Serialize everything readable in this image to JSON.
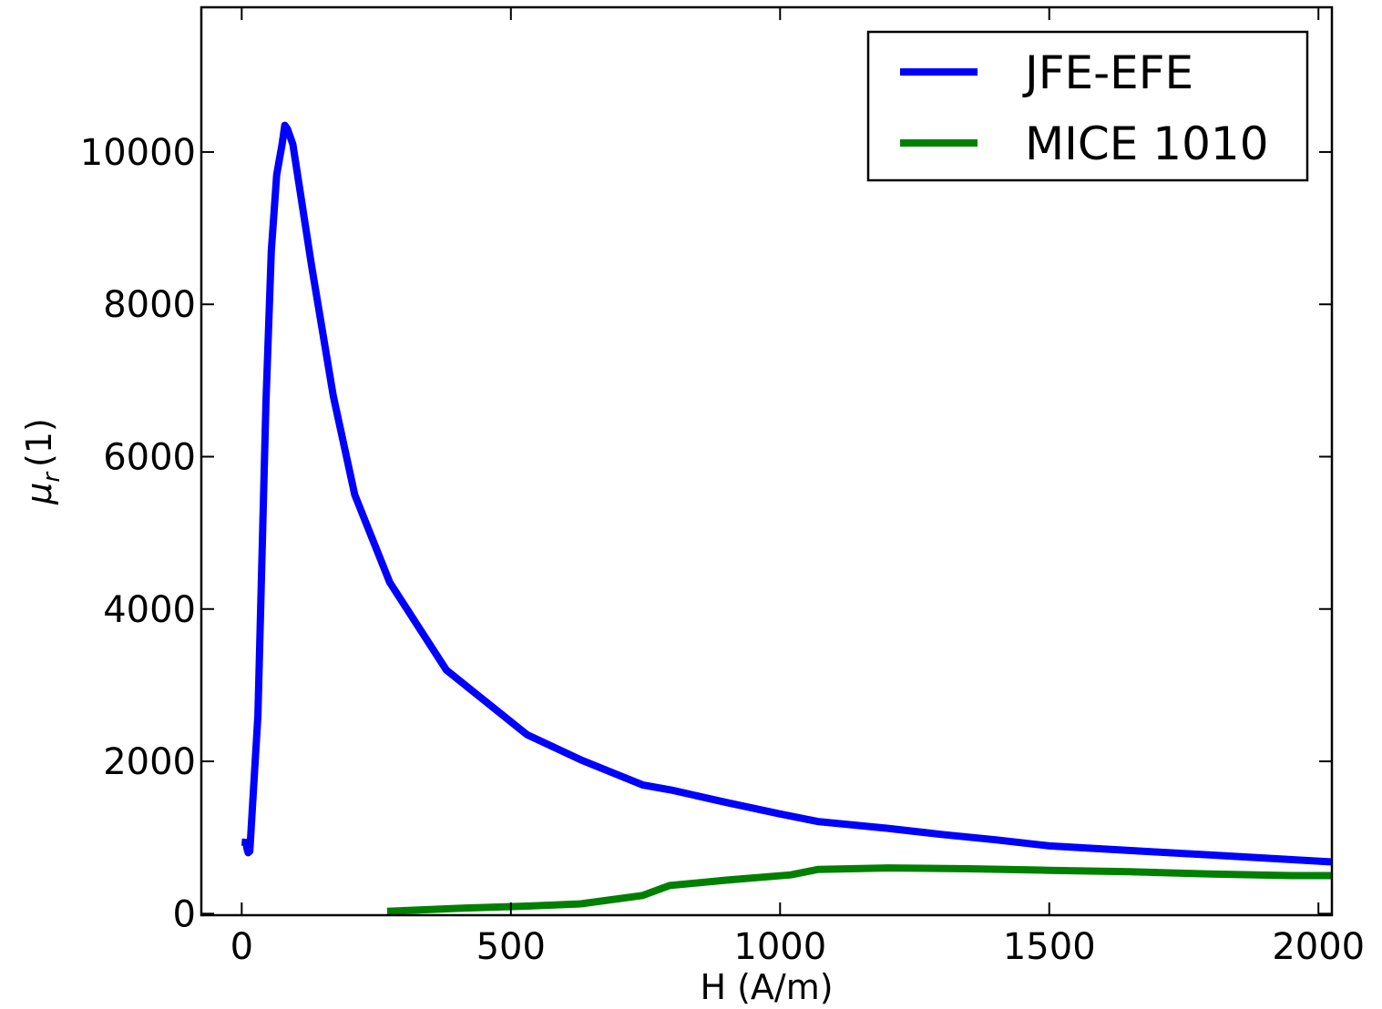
{
  "chart_data": {
    "type": "line",
    "title": "",
    "xlabel": "H (A/m)",
    "ylabel": "μ_r (1)",
    "ylabel_parts": {
      "symbol": "μ",
      "subscript": "r",
      "unit": "(1)"
    },
    "xlim": [
      -75,
      2025
    ],
    "ylim": [
      -20,
      11900
    ],
    "xticks": [
      0,
      500,
      1000,
      1500,
      2000
    ],
    "xtick_labels": [
      "0",
      "500",
      "1000",
      "1500",
      "2000"
    ],
    "yticks": [
      0,
      2000,
      4000,
      6000,
      8000,
      10000
    ],
    "ytick_labels": [
      "0",
      "2000",
      "4000",
      "6000",
      "8000",
      "10000"
    ],
    "grid": false,
    "legend_position": "top-right",
    "series": [
      {
        "name": "JFE-EFE",
        "color": "#0000ff",
        "x": [
          0,
          8,
          10,
          12,
          15,
          30,
          45,
          55,
          65,
          75,
          80,
          85,
          95,
          130,
          170,
          210,
          275,
          380,
          530,
          630,
          745,
          800,
          900,
          1000,
          1070,
          1200,
          1300,
          1400,
          1500,
          1600,
          1700,
          1800,
          1900,
          2025
        ],
        "y": [
          940,
          935,
          850,
          800,
          820,
          2600,
          6700,
          8700,
          9700,
          10100,
          10350,
          10300,
          10100,
          8500,
          6800,
          5500,
          4350,
          3200,
          2350,
          2020,
          1690,
          1620,
          1460,
          1310,
          1210,
          1120,
          1040,
          970,
          890,
          850,
          810,
          770,
          730,
          680
        ]
      },
      {
        "name": "MICE 1010",
        "color": "#008000",
        "x": [
          270,
          400,
          530,
          630,
          745,
          795,
          900,
          1020,
          1070,
          1200,
          1350,
          1500,
          1650,
          1800,
          1950,
          2025
        ],
        "y": [
          30,
          70,
          100,
          130,
          240,
          370,
          440,
          510,
          580,
          600,
          590,
          570,
          550,
          520,
          500,
          500
        ]
      }
    ]
  }
}
